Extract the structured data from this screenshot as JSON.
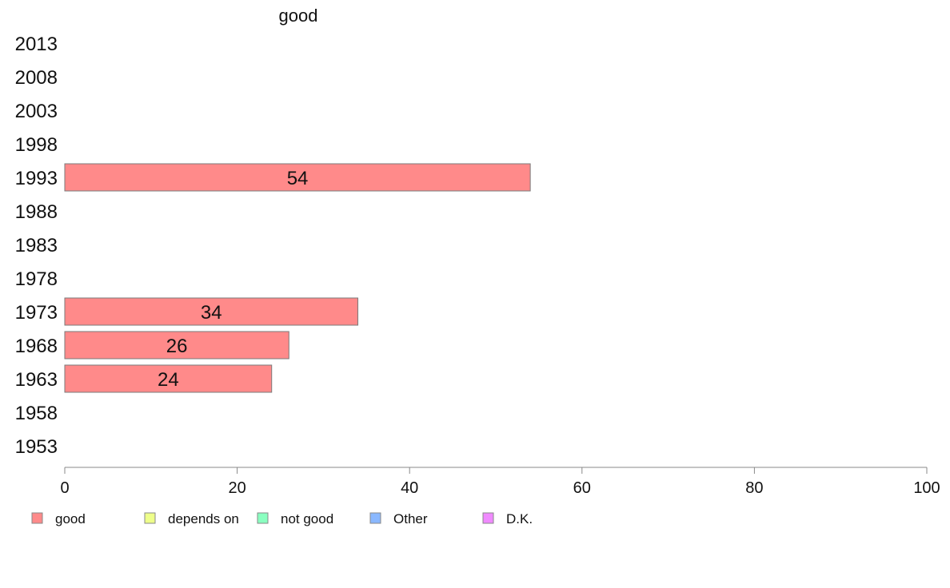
{
  "chart_data": {
    "type": "bar",
    "orientation": "horizontal",
    "title": "good",
    "categories": [
      "2013",
      "2008",
      "2003",
      "1998",
      "1993",
      "1988",
      "1983",
      "1978",
      "1973",
      "1968",
      "1963",
      "1958",
      "1953"
    ],
    "series": [
      {
        "name": "good",
        "values": [
          null,
          null,
          null,
          null,
          54,
          null,
          null,
          null,
          34,
          26,
          24,
          null,
          null
        ]
      }
    ],
    "data_labels": [
      null,
      null,
      null,
      null,
      "54",
      null,
      null,
      null,
      "34",
      "26",
      "24",
      null,
      null
    ],
    "xlim": [
      0,
      100
    ],
    "x_ticks": [
      "0",
      "20",
      "40",
      "60",
      "80",
      "100"
    ],
    "grid": false,
    "legend_position": "bottom",
    "legend": [
      {
        "label": "good",
        "color": "#ff8a8a"
      },
      {
        "label": "depends on",
        "color": "#eeff8a"
      },
      {
        "label": "not good",
        "color": "#8affc0"
      },
      {
        "label": "Other",
        "color": "#8ab8ff"
      },
      {
        "label": "D.K.",
        "color": "#f08aff"
      }
    ]
  }
}
